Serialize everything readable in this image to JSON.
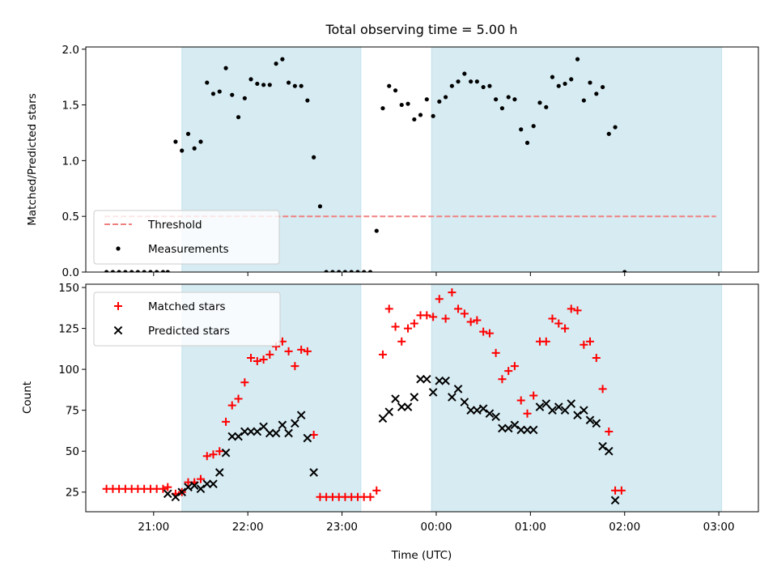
{
  "chart_data": {
    "type": "scatter",
    "title": "Total observing time = 5.00 h",
    "xlabel": "Time (UTC)",
    "x_ticks": [
      "21:00",
      "22:00",
      "23:00",
      "00:00",
      "01:00",
      "02:00",
      "03:00"
    ],
    "x_unit": "hours since 21:00 UTC",
    "xlim": [
      -0.72,
      6.42
    ],
    "shaded_intervals": [
      [
        0.3,
        2.2
      ],
      [
        2.95,
        6.03
      ]
    ],
    "shade_color": "#add8e6",
    "panels": [
      {
        "id": "top",
        "ylabel": "Matched/Predicted stars",
        "ylim": [
          0,
          2.02
        ],
        "yticks": [
          "0.0",
          "0.5",
          "1.0",
          "1.5",
          "2.0"
        ],
        "ytick_values": [
          0,
          0.5,
          1.0,
          1.5,
          2.0
        ],
        "legend_position": "lower-left",
        "threshold": {
          "name": "Threshold",
          "value": 0.5,
          "x_range": [
            -0.52,
            5.97
          ],
          "color": "#f08080"
        },
        "series": [
          {
            "name": "Measurements",
            "marker": "dot",
            "color": "#000000",
            "points": [
              [
                -0.5,
                0
              ],
              [
                -0.433,
                0
              ],
              [
                -0.367,
                0
              ],
              [
                -0.3,
                0
              ],
              [
                -0.233,
                0
              ],
              [
                -0.167,
                0
              ],
              [
                -0.1,
                0
              ],
              [
                -0.033,
                0
              ],
              [
                0.033,
                0
              ],
              [
                0.1,
                0
              ],
              [
                0.15,
                0
              ],
              [
                0.233,
                1.17
              ],
              [
                0.3,
                1.09
              ],
              [
                0.367,
                1.24
              ],
              [
                0.433,
                1.11
              ],
              [
                0.5,
                1.17
              ],
              [
                0.567,
                1.7
              ],
              [
                0.633,
                1.6
              ],
              [
                0.7,
                1.62
              ],
              [
                0.767,
                1.83
              ],
              [
                0.833,
                1.59
              ],
              [
                0.9,
                1.39
              ],
              [
                0.967,
                1.56
              ],
              [
                1.033,
                1.73
              ],
              [
                1.1,
                1.69
              ],
              [
                1.167,
                1.68
              ],
              [
                1.233,
                1.68
              ],
              [
                1.3,
                1.87
              ],
              [
                1.367,
                1.91
              ],
              [
                1.433,
                1.7
              ],
              [
                1.5,
                1.67
              ],
              [
                1.567,
                1.67
              ],
              [
                1.633,
                1.54
              ],
              [
                1.7,
                1.03
              ],
              [
                1.767,
                0.59
              ],
              [
                1.833,
                0
              ],
              [
                1.9,
                0
              ],
              [
                1.967,
                0
              ],
              [
                2.033,
                0
              ],
              [
                2.1,
                0
              ],
              [
                2.167,
                0
              ],
              [
                2.233,
                0
              ],
              [
                2.3,
                0
              ],
              [
                2.367,
                0.37
              ],
              [
                2.433,
                1.47
              ],
              [
                2.5,
                1.67
              ],
              [
                2.567,
                1.63
              ],
              [
                2.633,
                1.5
              ],
              [
                2.7,
                1.51
              ],
              [
                2.767,
                1.37
              ],
              [
                2.833,
                1.41
              ],
              [
                2.9,
                1.55
              ],
              [
                2.967,
                1.4
              ],
              [
                3.033,
                1.53
              ],
              [
                3.1,
                1.57
              ],
              [
                3.167,
                1.67
              ],
              [
                3.233,
                1.71
              ],
              [
                3.3,
                1.78
              ],
              [
                3.367,
                1.71
              ],
              [
                3.433,
                1.71
              ],
              [
                3.5,
                1.66
              ],
              [
                3.567,
                1.67
              ],
              [
                3.633,
                1.55
              ],
              [
                3.7,
                1.47
              ],
              [
                3.767,
                1.57
              ],
              [
                3.833,
                1.55
              ],
              [
                3.9,
                1.28
              ],
              [
                3.967,
                1.16
              ],
              [
                4.033,
                1.31
              ],
              [
                4.1,
                1.52
              ],
              [
                4.167,
                1.48
              ],
              [
                4.233,
                1.75
              ],
              [
                4.3,
                1.67
              ],
              [
                4.367,
                1.69
              ],
              [
                4.433,
                1.73
              ],
              [
                4.5,
                1.91
              ],
              [
                4.567,
                1.54
              ],
              [
                4.633,
                1.7
              ],
              [
                4.7,
                1.6
              ],
              [
                4.767,
                1.66
              ],
              [
                4.833,
                1.24
              ],
              [
                4.9,
                1.3
              ],
              [
                5.0,
                0
              ]
            ]
          }
        ]
      },
      {
        "id": "bottom",
        "ylabel": "Count",
        "ylim": [
          13,
          152
        ],
        "yticks": [
          "25",
          "50",
          "75",
          "100",
          "125",
          "150"
        ],
        "ytick_values": [
          25,
          50,
          75,
          100,
          125,
          150
        ],
        "legend_position": "upper-left",
        "series": [
          {
            "name": "Matched stars",
            "marker": "plus",
            "color": "#ff0000",
            "points": [
              [
                -0.5,
                27
              ],
              [
                -0.433,
                27
              ],
              [
                -0.367,
                27
              ],
              [
                -0.3,
                27
              ],
              [
                -0.233,
                27
              ],
              [
                -0.167,
                27
              ],
              [
                -0.1,
                27
              ],
              [
                -0.033,
                27
              ],
              [
                0.033,
                27
              ],
              [
                0.1,
                27
              ],
              [
                0.15,
                28
              ],
              [
                0.233,
                24
              ],
              [
                0.3,
                25
              ],
              [
                0.367,
                31
              ],
              [
                0.433,
                31
              ],
              [
                0.5,
                33
              ],
              [
                0.567,
                47
              ],
              [
                0.633,
                48
              ],
              [
                0.7,
                50
              ],
              [
                0.767,
                68
              ],
              [
                0.833,
                78
              ],
              [
                0.9,
                82
              ],
              [
                0.967,
                92
              ],
              [
                1.033,
                107
              ],
              [
                1.1,
                105
              ],
              [
                1.167,
                106
              ],
              [
                1.233,
                109
              ],
              [
                1.3,
                114
              ],
              [
                1.367,
                117
              ],
              [
                1.433,
                111
              ],
              [
                1.5,
                102
              ],
              [
                1.567,
                112
              ],
              [
                1.633,
                111
              ],
              [
                1.7,
                60
              ],
              [
                1.767,
                22
              ],
              [
                1.833,
                22
              ],
              [
                1.9,
                22
              ],
              [
                1.967,
                22
              ],
              [
                2.033,
                22
              ],
              [
                2.1,
                22
              ],
              [
                2.167,
                22
              ],
              [
                2.233,
                22
              ],
              [
                2.3,
                22
              ],
              [
                2.367,
                26
              ],
              [
                2.433,
                109
              ],
              [
                2.5,
                137
              ],
              [
                2.567,
                126
              ],
              [
                2.633,
                117
              ],
              [
                2.7,
                125
              ],
              [
                2.767,
                128
              ],
              [
                2.833,
                133
              ],
              [
                2.9,
                133
              ],
              [
                2.967,
                132
              ],
              [
                3.033,
                143
              ],
              [
                3.1,
                131
              ],
              [
                3.167,
                147
              ],
              [
                3.233,
                137
              ],
              [
                3.3,
                134
              ],
              [
                3.367,
                129
              ],
              [
                3.433,
                130
              ],
              [
                3.5,
                123
              ],
              [
                3.567,
                122
              ],
              [
                3.633,
                110
              ],
              [
                3.7,
                94
              ],
              [
                3.767,
                99
              ],
              [
                3.833,
                102
              ],
              [
                3.9,
                81
              ],
              [
                3.967,
                73
              ],
              [
                4.033,
                84
              ],
              [
                4.1,
                117
              ],
              [
                4.167,
                117
              ],
              [
                4.233,
                131
              ],
              [
                4.3,
                128
              ],
              [
                4.367,
                125
              ],
              [
                4.433,
                137
              ],
              [
                4.5,
                136
              ],
              [
                4.567,
                115
              ],
              [
                4.633,
                117
              ],
              [
                4.7,
                107
              ],
              [
                4.767,
                88
              ],
              [
                4.833,
                62
              ],
              [
                4.9,
                26
              ],
              [
                4.967,
                26
              ]
            ]
          },
          {
            "name": "Predicted stars",
            "marker": "x",
            "color": "#000000",
            "points": [
              [
                0.15,
                24
              ],
              [
                0.233,
                22
              ],
              [
                0.3,
                25
              ],
              [
                0.367,
                28
              ],
              [
                0.433,
                29
              ],
              [
                0.5,
                27
              ],
              [
                0.567,
                30
              ],
              [
                0.633,
                30
              ],
              [
                0.7,
                37
              ],
              [
                0.767,
                49
              ],
              [
                0.833,
                59
              ],
              [
                0.9,
                59
              ],
              [
                0.967,
                62
              ],
              [
                1.033,
                62
              ],
              [
                1.1,
                62
              ],
              [
                1.167,
                65
              ],
              [
                1.233,
                61
              ],
              [
                1.3,
                61
              ],
              [
                1.367,
                66
              ],
              [
                1.433,
                61
              ],
              [
                1.5,
                67
              ],
              [
                1.567,
                72
              ],
              [
                1.633,
                58
              ],
              [
                1.7,
                37
              ],
              [
                2.433,
                70
              ],
              [
                2.5,
                74
              ],
              [
                2.567,
                82
              ],
              [
                2.633,
                77
              ],
              [
                2.7,
                77
              ],
              [
                2.767,
                83
              ],
              [
                2.833,
                94
              ],
              [
                2.9,
                94
              ],
              [
                2.967,
                86
              ],
              [
                3.033,
                93
              ],
              [
                3.1,
                93
              ],
              [
                3.167,
                83
              ],
              [
                3.233,
                88
              ],
              [
                3.3,
                80
              ],
              [
                3.367,
                75
              ],
              [
                3.433,
                75
              ],
              [
                3.5,
                76
              ],
              [
                3.567,
                73
              ],
              [
                3.633,
                71
              ],
              [
                3.7,
                64
              ],
              [
                3.767,
                64
              ],
              [
                3.833,
                66
              ],
              [
                3.9,
                63
              ],
              [
                3.967,
                63
              ],
              [
                4.033,
                63
              ],
              [
                4.1,
                77
              ],
              [
                4.167,
                79
              ],
              [
                4.233,
                75
              ],
              [
                4.3,
                77
              ],
              [
                4.367,
                75
              ],
              [
                4.433,
                79
              ],
              [
                4.5,
                72
              ],
              [
                4.567,
                75
              ],
              [
                4.633,
                69
              ],
              [
                4.7,
                67
              ],
              [
                4.767,
                53
              ],
              [
                4.833,
                50
              ],
              [
                4.9,
                20
              ]
            ]
          }
        ]
      }
    ]
  }
}
